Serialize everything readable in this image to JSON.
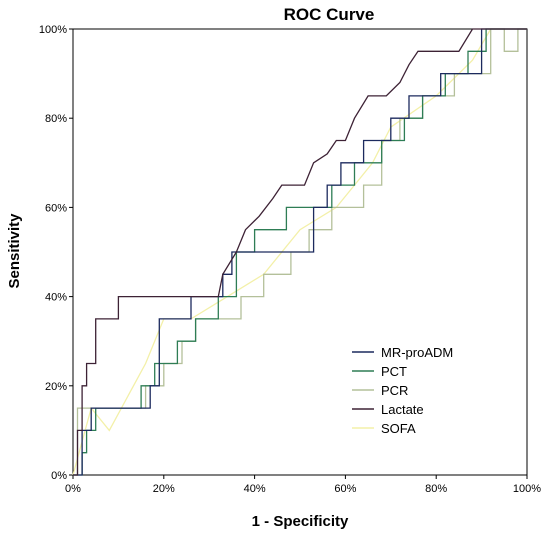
{
  "chart_data": {
    "type": "line",
    "title": "ROC Curve",
    "xlabel": "1 - Specificity",
    "ylabel": "Sensitivity",
    "xlim": [
      0,
      100
    ],
    "ylim": [
      0,
      100
    ],
    "x_ticks": [
      "0%",
      "20%",
      "40%",
      "60%",
      "80%",
      "100%"
    ],
    "y_ticks": [
      "0%",
      "20%",
      "40%",
      "60%",
      "80%",
      "100%"
    ],
    "grid": false,
    "legend_position": "bottom-right",
    "series": [
      {
        "name": "MR-proADM",
        "color": "#1c2a5e",
        "points": [
          [
            0,
            0
          ],
          [
            2,
            0
          ],
          [
            2,
            10
          ],
          [
            4,
            10
          ],
          [
            4,
            15
          ],
          [
            17,
            15
          ],
          [
            17,
            20
          ],
          [
            19,
            20
          ],
          [
            19,
            35
          ],
          [
            26,
            35
          ],
          [
            26,
            40
          ],
          [
            33,
            40
          ],
          [
            33,
            45
          ],
          [
            35,
            45
          ],
          [
            35,
            50
          ],
          [
            53,
            50
          ],
          [
            53,
            60
          ],
          [
            56,
            60
          ],
          [
            56,
            65
          ],
          [
            59,
            65
          ],
          [
            59,
            70
          ],
          [
            64,
            70
          ],
          [
            64,
            75
          ],
          [
            70,
            75
          ],
          [
            70,
            80
          ],
          [
            74,
            80
          ],
          [
            74,
            85
          ],
          [
            81,
            85
          ],
          [
            81,
            90
          ],
          [
            90,
            90
          ],
          [
            90,
            100
          ],
          [
            100,
            100
          ]
        ]
      },
      {
        "name": "PCT",
        "color": "#2e7d55",
        "points": [
          [
            0,
            0
          ],
          [
            2,
            0
          ],
          [
            2,
            5
          ],
          [
            3,
            5
          ],
          [
            3,
            10
          ],
          [
            5,
            10
          ],
          [
            5,
            15
          ],
          [
            15,
            15
          ],
          [
            15,
            20
          ],
          [
            18,
            20
          ],
          [
            18,
            25
          ],
          [
            23,
            25
          ],
          [
            23,
            30
          ],
          [
            27,
            30
          ],
          [
            27,
            35
          ],
          [
            32,
            35
          ],
          [
            32,
            40
          ],
          [
            36,
            40
          ],
          [
            36,
            50
          ],
          [
            40,
            50
          ],
          [
            40,
            55
          ],
          [
            47,
            55
          ],
          [
            47,
            60
          ],
          [
            57,
            60
          ],
          [
            57,
            65
          ],
          [
            62,
            65
          ],
          [
            62,
            70
          ],
          [
            68,
            70
          ],
          [
            68,
            75
          ],
          [
            73,
            75
          ],
          [
            73,
            80
          ],
          [
            77,
            80
          ],
          [
            77,
            85
          ],
          [
            82,
            85
          ],
          [
            82,
            90
          ],
          [
            87,
            90
          ],
          [
            87,
            95
          ],
          [
            91,
            95
          ],
          [
            91,
            100
          ],
          [
            100,
            100
          ]
        ]
      },
      {
        "name": "PCR",
        "color": "#b4c09a",
        "points": [
          [
            0,
            0
          ],
          [
            1,
            0
          ],
          [
            1,
            15
          ],
          [
            16,
            15
          ],
          [
            16,
            20
          ],
          [
            20,
            20
          ],
          [
            20,
            25
          ],
          [
            24,
            25
          ],
          [
            24,
            30
          ],
          [
            27,
            30
          ],
          [
            27,
            35
          ],
          [
            37,
            35
          ],
          [
            37,
            40
          ],
          [
            42,
            40
          ],
          [
            42,
            45
          ],
          [
            48,
            45
          ],
          [
            48,
            50
          ],
          [
            52,
            50
          ],
          [
            52,
            55
          ],
          [
            57,
            55
          ],
          [
            57,
            60
          ],
          [
            64,
            60
          ],
          [
            64,
            65
          ],
          [
            68,
            65
          ],
          [
            68,
            75
          ],
          [
            72,
            75
          ],
          [
            72,
            80
          ],
          [
            77,
            80
          ],
          [
            77,
            85
          ],
          [
            84,
            85
          ],
          [
            84,
            90
          ],
          [
            92,
            90
          ],
          [
            92,
            100
          ],
          [
            95,
            100
          ],
          [
            95,
            95
          ],
          [
            98,
            95
          ],
          [
            98,
            100
          ],
          [
            100,
            100
          ]
        ]
      },
      {
        "name": "Lactate",
        "color": "#3d2235",
        "points": [
          [
            0,
            0
          ],
          [
            1,
            0
          ],
          [
            1,
            10
          ],
          [
            2,
            10
          ],
          [
            2,
            20
          ],
          [
            3,
            20
          ],
          [
            3,
            25
          ],
          [
            5,
            25
          ],
          [
            5,
            35
          ],
          [
            10,
            35
          ],
          [
            10,
            40
          ],
          [
            32,
            40
          ],
          [
            33,
            45
          ],
          [
            36,
            50
          ],
          [
            38,
            55
          ],
          [
            41,
            58
          ],
          [
            44,
            62
          ],
          [
            46,
            65
          ],
          [
            51,
            65
          ],
          [
            53,
            70
          ],
          [
            56,
            72
          ],
          [
            58,
            75
          ],
          [
            60,
            75
          ],
          [
            62,
            80
          ],
          [
            65,
            85
          ],
          [
            69,
            85
          ],
          [
            72,
            88
          ],
          [
            74,
            92
          ],
          [
            76,
            95
          ],
          [
            85,
            95
          ],
          [
            88,
            100
          ],
          [
            100,
            100
          ]
        ]
      },
      {
        "name": "SOFA",
        "color": "#f3f0a8",
        "points": [
          [
            0,
            0
          ],
          [
            4,
            15
          ],
          [
            8,
            10
          ],
          [
            16,
            25
          ],
          [
            20,
            35
          ],
          [
            26,
            35
          ],
          [
            34,
            40
          ],
          [
            42,
            45
          ],
          [
            50,
            55
          ],
          [
            58,
            60
          ],
          [
            62,
            65
          ],
          [
            66,
            70
          ],
          [
            70,
            78
          ],
          [
            80,
            85
          ],
          [
            88,
            93
          ],
          [
            92,
            100
          ],
          [
            100,
            100
          ]
        ]
      }
    ]
  }
}
